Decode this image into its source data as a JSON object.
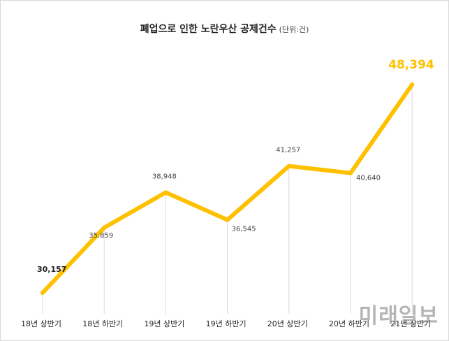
{
  "title": "폐업으로 인한 노란우산 공제건수",
  "unit": "(단위:건)",
  "watermark": "미래일보",
  "colors": {
    "line": "#FFC000",
    "highlight_label": "#FFC000",
    "droplines": "#d9d9d9"
  },
  "chart_data": {
    "type": "line",
    "title": "폐업으로 인한 노란우산 공제건수",
    "categories": [
      "18년 상반기",
      "18년 하반기",
      "19년 상반기",
      "19년 하반기",
      "20년 상반기",
      "20년 하반기",
      "21년 상반기"
    ],
    "values": [
      30157,
      35859,
      38948,
      36545,
      41257,
      40640,
      48394
    ],
    "labels": [
      "30,157",
      "35,859",
      "38,948",
      "36,545",
      "41,257",
      "40,640",
      "48,394"
    ],
    "ylim": [
      28000,
      50000
    ],
    "grid": false,
    "legend": "none"
  }
}
